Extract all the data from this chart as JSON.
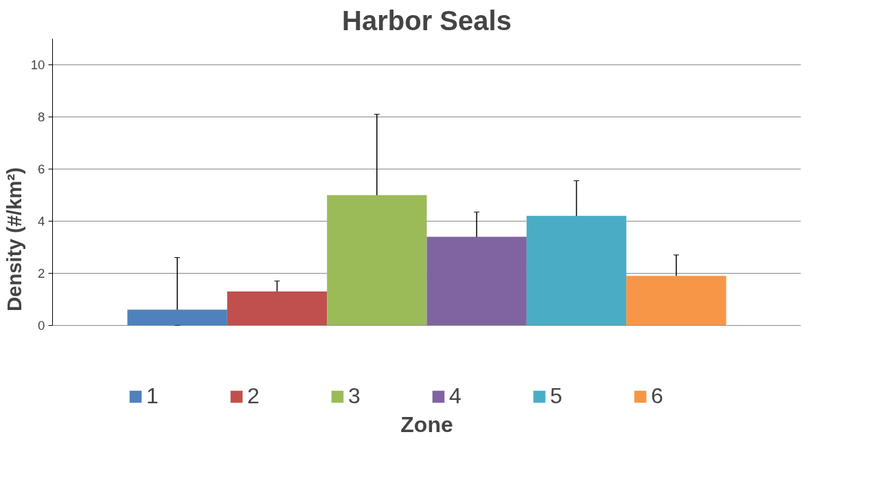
{
  "chart_data": {
    "type": "bar",
    "title": "Harbor Seals",
    "xlabel": "Zone",
    "ylabel": "Density (#/km²)",
    "categories": [
      null
    ],
    "series": [
      {
        "name": "1",
        "color": "#4f81bd",
        "values": [
          0.6
        ],
        "errors": [
          [
            0,
            2.6
          ]
        ]
      },
      {
        "name": "2",
        "color": "#c0504d",
        "values": [
          1.3
        ],
        "errors": [
          0.4
        ]
      },
      {
        "name": "3",
        "color": "#9bbb59",
        "values": [
          5.0
        ],
        "errors": [
          3.1
        ]
      },
      {
        "name": "4",
        "color": "#8064a2",
        "values": [
          3.4
        ],
        "errors": [
          0.95
        ]
      },
      {
        "name": "5",
        "color": "#4bacc6",
        "values": [
          4.2
        ],
        "errors": [
          1.35
        ]
      },
      {
        "name": "6",
        "color": "#f79646",
        "values": [
          1.9
        ],
        "errors": [
          0.8
        ]
      }
    ],
    "ylim": [
      0,
      11
    ],
    "yticks": [
      0,
      2,
      4,
      6,
      8,
      10
    ],
    "grid": "y",
    "legend": "bottom"
  }
}
